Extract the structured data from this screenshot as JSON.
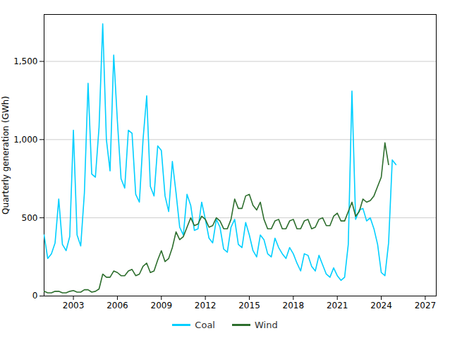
{
  "chart_data": {
    "type": "line",
    "ylabel": "Quarterly generation (GWh)",
    "xlim": [
      2001.0,
      2027.75
    ],
    "xticks": [
      2003,
      2006,
      2009,
      2012,
      2015,
      2018,
      2021,
      2024,
      2027
    ],
    "ylim": [
      0,
      1800
    ],
    "yticks": [
      0,
      500,
      {
        "value": 1000,
        "label": "1,000"
      },
      {
        "value": 1500,
        "label": "1,500"
      }
    ],
    "grid": true,
    "legend": "bottom",
    "series": [
      {
        "name": "Coal",
        "color": "#00cfff",
        "x": [
          2001,
          2001.25,
          2001.5,
          2001.75,
          2002,
          2002.25,
          2002.5,
          2002.75,
          2003,
          2003.25,
          2003.5,
          2003.75,
          2004,
          2004.25,
          2004.5,
          2004.75,
          2005,
          2005.25,
          2005.5,
          2005.75,
          2006,
          2006.25,
          2006.5,
          2006.75,
          2007,
          2007.25,
          2007.5,
          2007.75,
          2008,
          2008.25,
          2008.5,
          2008.75,
          2009,
          2009.25,
          2009.5,
          2009.75,
          2010,
          2010.25,
          2010.5,
          2010.75,
          2011,
          2011.25,
          2011.5,
          2011.75,
          2012,
          2012.25,
          2012.5,
          2012.75,
          2013,
          2013.25,
          2013.5,
          2013.75,
          2014,
          2014.25,
          2014.5,
          2014.75,
          2015,
          2015.25,
          2015.5,
          2015.75,
          2016,
          2016.25,
          2016.5,
          2016.75,
          2017,
          2017.25,
          2017.5,
          2017.75,
          2018,
          2018.25,
          2018.5,
          2018.75,
          2019,
          2019.25,
          2019.5,
          2019.75,
          2020,
          2020.25,
          2020.5,
          2020.75,
          2021,
          2021.25,
          2021.5,
          2021.75,
          2022,
          2022.25,
          2022.5,
          2022.75,
          2023,
          2023.25,
          2023.5,
          2023.75,
          2024,
          2024.25,
          2024.5,
          2024.75,
          2025
        ],
        "values": [
          390,
          240,
          270,
          340,
          620,
          330,
          290,
          380,
          1060,
          390,
          320,
          660,
          1360,
          780,
          760,
          1080,
          1740,
          1000,
          800,
          1540,
          1120,
          750,
          690,
          1060,
          1040,
          650,
          600,
          1000,
          1280,
          700,
          640,
          960,
          930,
          640,
          540,
          860,
          660,
          440,
          390,
          650,
          580,
          420,
          430,
          600,
          490,
          370,
          340,
          490,
          440,
          300,
          280,
          440,
          490,
          330,
          310,
          470,
          390,
          290,
          250,
          390,
          360,
          270,
          250,
          370,
          310,
          270,
          240,
          310,
          270,
          210,
          160,
          270,
          260,
          190,
          160,
          260,
          200,
          140,
          120,
          180,
          130,
          100,
          120,
          330,
          1310,
          490,
          550,
          560,
          480,
          500,
          430,
          330,
          150,
          130,
          340,
          870,
          840
        ]
      },
      {
        "name": "Wind",
        "color": "#2d6e2d",
        "x": [
          2001,
          2001.25,
          2001.5,
          2001.75,
          2002,
          2002.25,
          2002.5,
          2002.75,
          2003,
          2003.25,
          2003.5,
          2003.75,
          2004,
          2004.25,
          2004.5,
          2004.75,
          2005,
          2005.25,
          2005.5,
          2005.75,
          2006,
          2006.25,
          2006.5,
          2006.75,
          2007,
          2007.25,
          2007.5,
          2007.75,
          2008,
          2008.25,
          2008.5,
          2008.75,
          2009,
          2009.25,
          2009.5,
          2009.75,
          2010,
          2010.25,
          2010.5,
          2010.75,
          2011,
          2011.25,
          2011.5,
          2011.75,
          2012,
          2012.25,
          2012.5,
          2012.75,
          2013,
          2013.25,
          2013.5,
          2013.75,
          2014,
          2014.25,
          2014.5,
          2014.75,
          2015,
          2015.25,
          2015.5,
          2015.75,
          2016,
          2016.25,
          2016.5,
          2016.75,
          2017,
          2017.25,
          2017.5,
          2017.75,
          2018,
          2018.25,
          2018.5,
          2018.75,
          2019,
          2019.25,
          2019.5,
          2019.75,
          2020,
          2020.25,
          2020.5,
          2020.75,
          2021,
          2021.25,
          2021.5,
          2021.75,
          2022,
          2022.25,
          2022.5,
          2022.75,
          2023,
          2023.25,
          2023.5,
          2023.75,
          2024,
          2024.25,
          2024.5
        ],
        "values": [
          30,
          20,
          20,
          30,
          30,
          20,
          20,
          30,
          35,
          25,
          25,
          40,
          40,
          25,
          30,
          45,
          140,
          120,
          120,
          160,
          150,
          130,
          130,
          160,
          170,
          130,
          140,
          190,
          210,
          150,
          160,
          230,
          290,
          220,
          240,
          310,
          410,
          360,
          380,
          440,
          500,
          450,
          460,
          510,
          490,
          440,
          450,
          500,
          480,
          430,
          430,
          490,
          620,
          560,
          560,
          640,
          650,
          580,
          550,
          600,
          490,
          430,
          430,
          480,
          490,
          430,
          430,
          480,
          490,
          430,
          430,
          480,
          490,
          430,
          440,
          490,
          500,
          450,
          450,
          510,
          530,
          480,
          480,
          540,
          600,
          510,
          540,
          620,
          600,
          610,
          640,
          700,
          760,
          980,
          840
        ]
      }
    ]
  }
}
